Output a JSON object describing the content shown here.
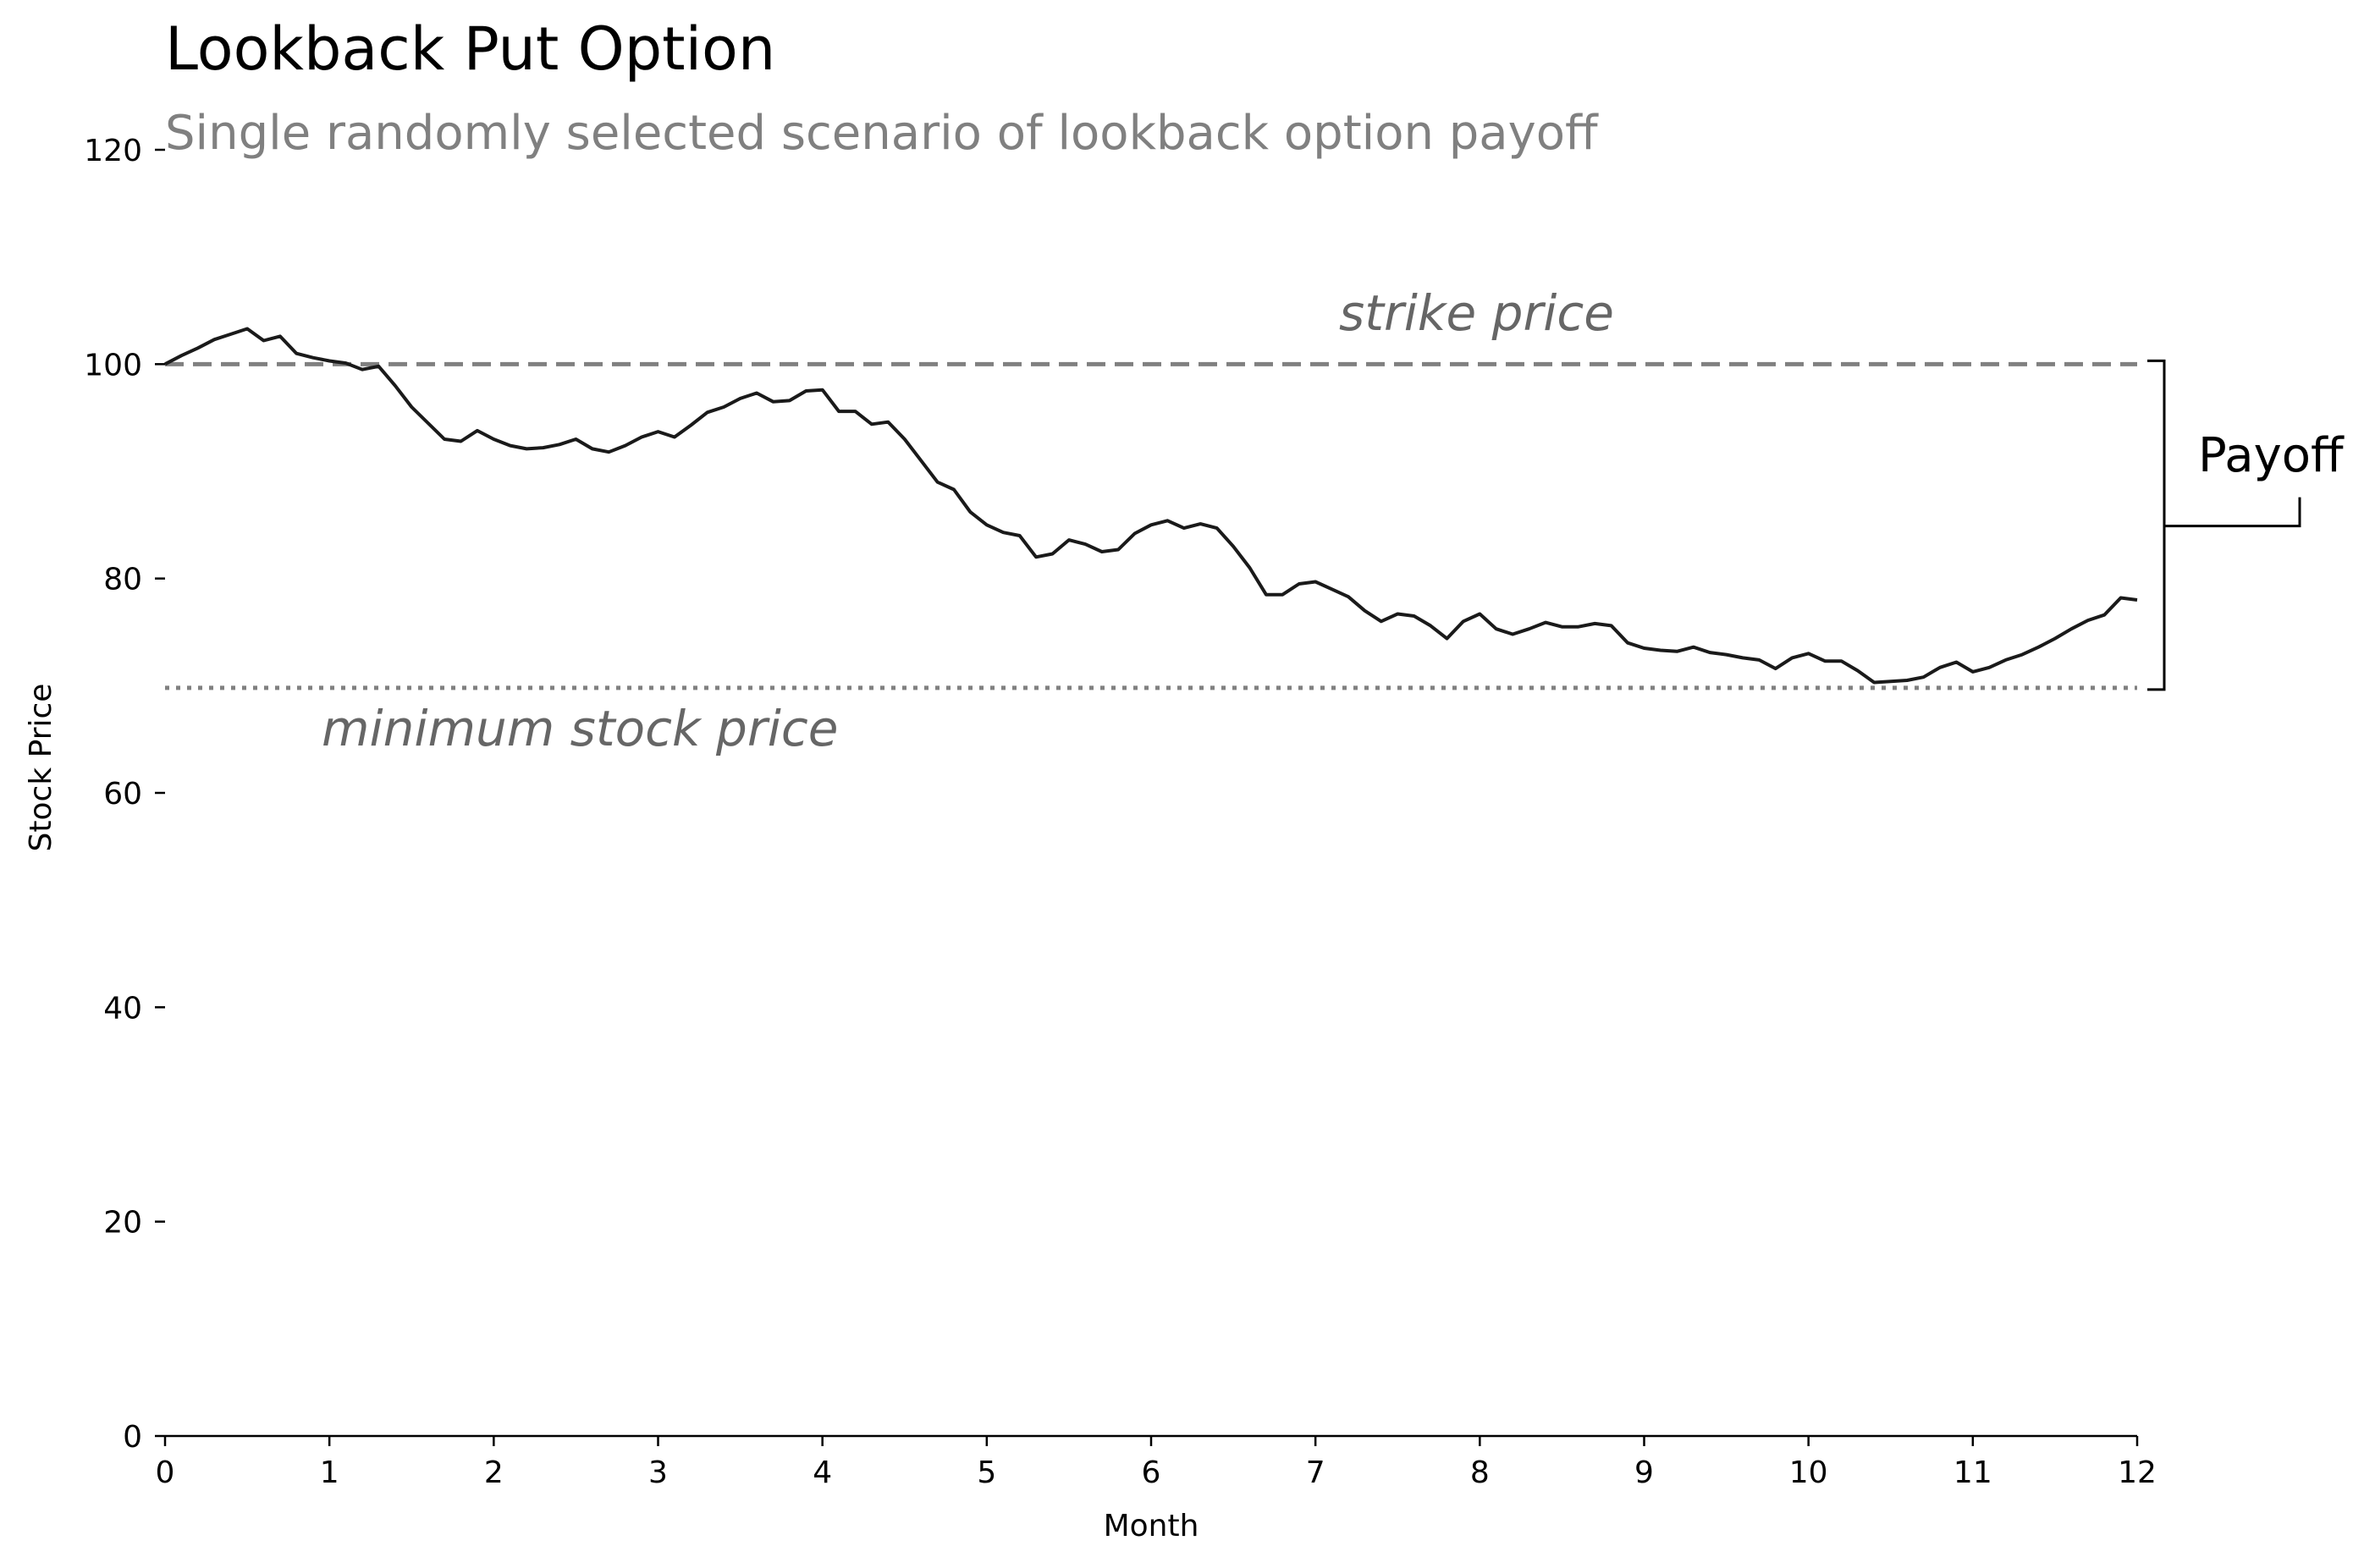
{
  "chart_data": {
    "type": "line",
    "title": "Lookback Put Option",
    "subtitle": "Single randomly selected scenario of lookback option payoff",
    "xlabel": "Month",
    "ylabel": "Stock Price",
    "xlim": [
      0,
      12
    ],
    "ylim": [
      0,
      120
    ],
    "x_ticks": [
      0,
      1,
      2,
      3,
      4,
      5,
      6,
      7,
      8,
      9,
      10,
      11,
      12
    ],
    "x_tick_labels": [
      "0",
      "1",
      "2",
      "3",
      "4",
      "5",
      "6",
      "7",
      "8",
      "9",
      "10",
      "11",
      "12"
    ],
    "y_ticks": [
      0,
      20,
      40,
      60,
      80,
      100,
      120
    ],
    "y_tick_labels": [
      "0",
      "20",
      "40",
      "60",
      "80",
      "100",
      "120"
    ],
    "grid": false,
    "strike_price": 100,
    "minimum_stock_price": 69.8,
    "annotations": {
      "strike": "strike price",
      "minimum": "minimum stock price",
      "payoff": "Payoff"
    },
    "colors": {
      "line": "#1a1a1a",
      "reference_lines": "#808080",
      "annotation_text": "#666666",
      "subtitle": "#808080"
    },
    "series": [
      {
        "x": [
          0,
          0.1,
          0.2,
          0.3,
          0.4,
          0.5,
          0.6,
          0.7,
          0.8,
          0.9,
          1.0,
          1.1,
          1.2,
          1.3,
          1.4,
          1.5,
          1.6,
          1.7,
          1.8,
          1.9,
          2.0,
          2.1,
          2.2,
          2.3,
          2.4,
          2.5,
          2.6,
          2.7,
          2.8,
          2.9,
          3.0,
          3.1,
          3.2,
          3.3,
          3.4,
          3.5,
          3.6,
          3.7,
          3.8,
          3.9,
          4.0,
          4.1,
          4.2,
          4.3,
          4.4,
          4.5,
          4.6,
          4.7,
          4.8,
          4.9,
          5.0,
          5.1,
          5.2,
          5.3,
          5.4,
          5.5,
          5.6,
          5.7,
          5.8,
          5.9,
          6.0,
          6.1,
          6.2,
          6.3,
          6.4,
          6.5,
          6.6,
          6.7,
          6.8,
          6.9,
          7.0,
          7.1,
          7.2,
          7.3,
          7.4,
          7.5,
          7.6,
          7.7,
          7.8,
          7.9,
          8.0,
          8.1,
          8.2,
          8.3,
          8.4,
          8.5,
          8.6,
          8.7,
          8.8,
          8.9,
          9.0,
          9.1,
          9.2,
          9.3,
          9.4,
          9.5,
          9.6,
          9.7,
          9.8,
          9.9,
          10.0,
          10.1,
          10.2,
          10.3,
          10.4,
          10.5,
          10.6,
          10.7,
          10.8,
          10.9,
          11.0,
          11.1,
          11.2,
          11.3,
          11.4,
          11.5,
          11.6,
          11.7,
          11.8,
          11.9,
          12.0
        ],
        "y": [
          100.0,
          100.8,
          101.5,
          102.3,
          102.8,
          103.3,
          102.2,
          102.6,
          101.0,
          100.6,
          100.3,
          100.1,
          99.5,
          99.8,
          98.0,
          96.0,
          94.5,
          93.0,
          92.8,
          93.8,
          93.0,
          92.4,
          92.1,
          92.2,
          92.5,
          93.0,
          92.1,
          91.8,
          92.4,
          93.2,
          93.7,
          93.2,
          94.3,
          95.5,
          96.0,
          96.8,
          97.3,
          96.5,
          96.6,
          97.5,
          97.6,
          95.6,
          95.6,
          94.4,
          94.6,
          93.0,
          91.0,
          89.0,
          88.3,
          86.2,
          85.0,
          84.3,
          84.0,
          82.0,
          82.3,
          83.6,
          83.2,
          82.5,
          82.7,
          84.2,
          85.0,
          85.4,
          84.7,
          85.1,
          84.7,
          83.0,
          81.0,
          78.5,
          78.5,
          79.5,
          79.7,
          79.0,
          78.3,
          77.0,
          76.0,
          76.7,
          76.5,
          75.6,
          74.4,
          76.0,
          76.7,
          75.3,
          74.8,
          75.3,
          75.9,
          75.5,
          75.5,
          75.8,
          75.6,
          74.0,
          73.5,
          73.3,
          73.2,
          73.6,
          73.1,
          72.9,
          72.6,
          72.4,
          71.6,
          72.6,
          73.0,
          72.3,
          72.3,
          71.4,
          70.3,
          70.4,
          70.5,
          70.8,
          71.7,
          72.2,
          71.3,
          71.7,
          72.4,
          72.9,
          73.6,
          74.4,
          75.3,
          76.1,
          76.6,
          78.2,
          78.0
        ]
      }
    ]
  }
}
